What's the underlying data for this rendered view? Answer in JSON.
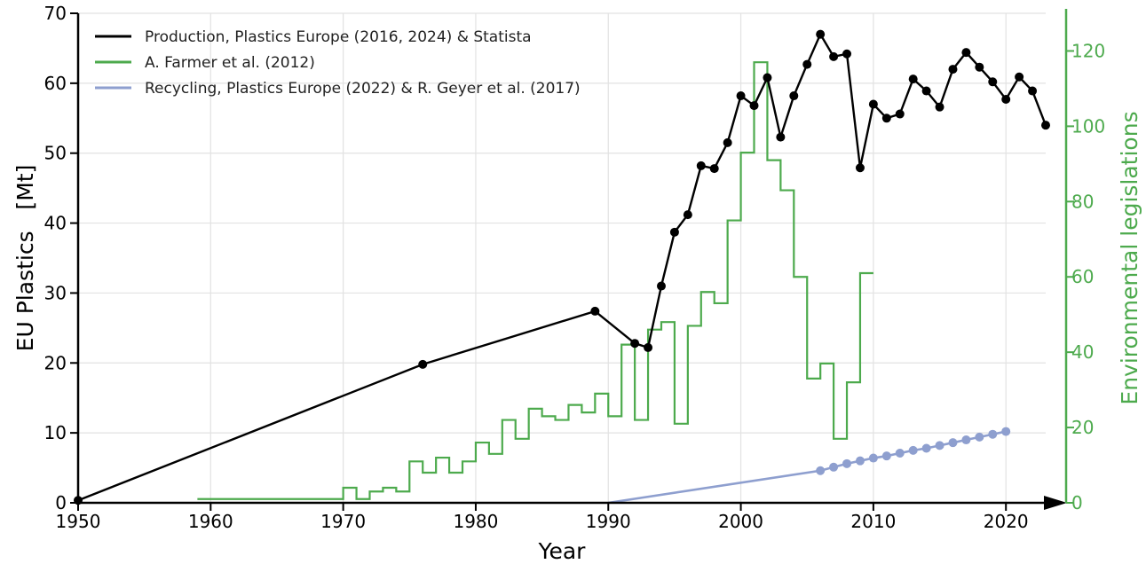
{
  "colors": {
    "production": "#000000",
    "legislation": "#4daa4d",
    "recycling": "#8e9fcf",
    "grid": "#e2e2e2"
  },
  "chart_data": {
    "type": "line",
    "xlabel": "Year",
    "ylabel": "EU Plastics   [Mt]",
    "ylabel_right": "Environmental legislations",
    "xlim": [
      1950,
      2023
    ],
    "ylim": [
      0,
      70
    ],
    "ylim_right": [
      0,
      130
    ],
    "x_ticks": [
      "1950",
      "1960",
      "1970",
      "1980",
      "1990",
      "2000",
      "2010",
      "2020"
    ],
    "y_ticks": [
      "0",
      "10",
      "20",
      "30",
      "40",
      "50",
      "60",
      "70"
    ],
    "y_right_ticks": [
      "0",
      "20",
      "40",
      "60",
      "80",
      "100",
      "120"
    ],
    "grid": true,
    "legend_position": "top-left",
    "series": [
      {
        "name": "Production, Plastics Europe (2016, 2024) & Statista",
        "axis": "left",
        "style": "line-markers",
        "x": [
          1950,
          1976,
          1989,
          1992,
          1993,
          1994,
          1995,
          1996,
          1997,
          1998,
          1999,
          2000,
          2001,
          2002,
          2003,
          2004,
          2005,
          2006,
          2007,
          2008,
          2009,
          2010,
          2011,
          2012,
          2013,
          2014,
          2015,
          2016,
          2017,
          2018,
          2019,
          2020,
          2021,
          2022,
          2023
        ],
        "y": [
          0.35,
          19.8,
          27.4,
          22.8,
          22.2,
          31.0,
          38.7,
          41.2,
          48.2,
          47.8,
          51.5,
          58.2,
          56.8,
          60.8,
          52.3,
          58.2,
          62.7,
          67.0,
          63.8,
          64.2,
          47.9,
          57.0,
          55.0,
          55.6,
          60.6,
          58.9,
          56.6,
          62.0,
          64.4,
          62.3,
          60.2,
          57.7,
          60.9,
          58.9,
          54.0
        ]
      },
      {
        "name": "A. Farmer et al. (2012)",
        "axis": "right",
        "style": "steps",
        "x": [
          1959,
          1970,
          1971,
          1972,
          1973,
          1974,
          1975,
          1976,
          1977,
          1978,
          1979,
          1980,
          1981,
          1982,
          1983,
          1984,
          1985,
          1986,
          1987,
          1988,
          1989,
          1990,
          1991,
          1992,
          1993,
          1994,
          1995,
          1996,
          1997,
          1998,
          1999,
          2000,
          2001,
          2002,
          2003,
          2004,
          2005,
          2006,
          2007,
          2008,
          2009
        ],
        "y": [
          1,
          4,
          1,
          3,
          4,
          3,
          11,
          8,
          12,
          8,
          11,
          16,
          13,
          22,
          17,
          25,
          23,
          22,
          26,
          24,
          29,
          23,
          42,
          22,
          46,
          48,
          21,
          47,
          56,
          53,
          75,
          93,
          117,
          91,
          83,
          60,
          33,
          37,
          17,
          32,
          61
        ],
        "x_end": 2010
      },
      {
        "name": "Recycling, Plastics Europe (2022) & R. Geyer et al. (2017)",
        "axis": "left",
        "style": "line-markers-partial",
        "x": [
          1990,
          2006,
          2007,
          2008,
          2009,
          2010,
          2011,
          2012,
          2013,
          2014,
          2015,
          2016,
          2017,
          2018,
          2019,
          2020
        ],
        "y": [
          0,
          4.6,
          5.1,
          5.6,
          6.0,
          6.4,
          6.7,
          7.1,
          7.5,
          7.8,
          8.2,
          8.6,
          9.0,
          9.4,
          9.8,
          10.2
        ],
        "marker_from": 2006
      }
    ]
  }
}
